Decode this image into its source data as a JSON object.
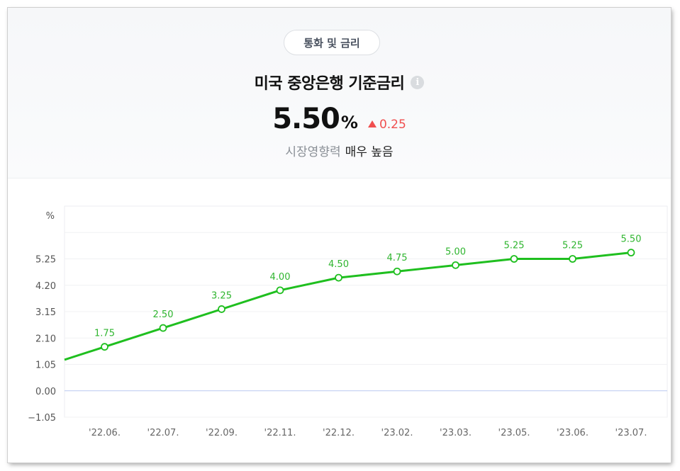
{
  "header": {
    "category_tag": "통화 및 금리",
    "title": "미국 중앙은행 기준금리",
    "info_icon": "info-icon",
    "value": "5.50",
    "unit": "%",
    "change": "0.25",
    "change_direction": "up",
    "change_color": "#f04f4f",
    "impact_label": "시장영향력",
    "impact_value": "매우 높음"
  },
  "chart_data": {
    "type": "line",
    "ylabel": "%",
    "line_color": "#1fbf1f",
    "x": [
      "'22.06.",
      "'22.07.",
      "'22.09.",
      "'22.11.",
      "'22.12.",
      "'23.02.",
      "'23.03.",
      "'23.05.",
      "'23.06.",
      "'23.07."
    ],
    "y_ticks": [
      "−1.05",
      "0.00",
      "1.05",
      "2.10",
      "3.15",
      "4.20",
      "5.25"
    ],
    "series": [
      {
        "values": [
          1.75,
          2.5,
          3.25,
          4.0,
          4.5,
          4.75,
          5.0,
          5.25,
          5.25,
          5.5
        ],
        "labels": [
          "1.75",
          "2.50",
          "3.25",
          "4.00",
          "4.50",
          "4.75",
          "5.00",
          "5.25",
          "5.25",
          "5.50"
        ]
      }
    ],
    "ylim": [
      -1.05,
      7.35
    ],
    "grid": true
  }
}
